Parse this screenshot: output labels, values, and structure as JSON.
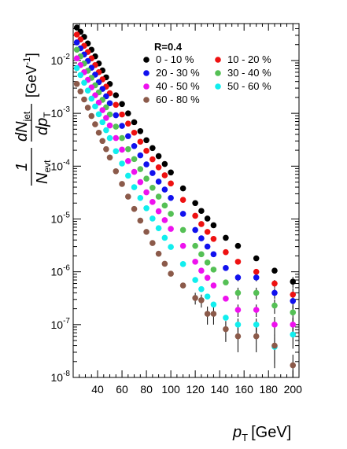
{
  "chart_data": {
    "type": "scatter",
    "xlabel": "p",
    "xlabel_sub": "T",
    "xlabel_unit": "[GeV]",
    "ylabel_parts": {
      "one": "1",
      "nevt": "N",
      "nevt_sub": "evt",
      "dn": "dN",
      "dn_sub": "jet",
      "dp": "dp",
      "dp_sub": "T",
      "unit_main": "[GeV",
      "unit_exp": "-1",
      "unit_close": "]"
    },
    "xlim": [
      20,
      205
    ],
    "ylim": [
      1e-08,
      0.05
    ],
    "log_y": true,
    "grid": false,
    "legend_title": "R=0.4",
    "legend_placement": "top-right",
    "x_ticks": [
      40,
      60,
      80,
      100,
      120,
      140,
      160,
      180,
      200
    ],
    "x_tick_labels": [
      "40",
      "60",
      "80",
      "100",
      "120",
      "140",
      "160",
      "180",
      "200"
    ],
    "y_ticks": [
      {
        "exp": -8,
        "label_base": "10",
        "label_exp": "-8"
      },
      {
        "exp": -7,
        "label_base": "10",
        "label_exp": "-7"
      },
      {
        "exp": -6,
        "label_base": "10",
        "label_exp": "-6"
      },
      {
        "exp": -5,
        "label_base": "10",
        "label_exp": "-5"
      },
      {
        "exp": -4,
        "label_base": "10",
        "label_exp": "-4"
      },
      {
        "exp": -3,
        "label_base": "10",
        "label_exp": "-3"
      },
      {
        "exp": -2,
        "label_base": "10",
        "label_exp": "-2"
      }
    ],
    "x": [
      23,
      26,
      29,
      32,
      35,
      38,
      41,
      44,
      47,
      50,
      55,
      60,
      65,
      70,
      75,
      80,
      85,
      90,
      95,
      100,
      110,
      120,
      125,
      130,
      135,
      145,
      155,
      170,
      185,
      200
    ],
    "series": [
      {
        "name": "0 - 10 %",
        "color": "#000000",
        "values": [
          0.042,
          0.035,
          0.028,
          0.021,
          0.016,
          0.012,
          0.0088,
          0.0065,
          0.0048,
          0.0036,
          0.0022,
          0.0015,
          0.001,
          0.00068,
          0.00046,
          0.00031,
          0.00022,
          0.000155,
          0.00011,
          7.6e-05,
          3.8e-05,
          2e-05,
          1.42e-05,
          1.02e-05,
          7.6e-06,
          4.4e-06,
          3.1e-06,
          1.8e-06,
          1.05e-06,
          6.5e-07
        ],
        "errors": [
          0,
          0,
          0,
          0,
          0,
          0,
          0,
          0,
          0,
          0,
          0,
          0,
          0,
          0,
          0,
          0,
          0,
          0,
          0,
          0,
          0,
          0,
          0,
          0,
          0,
          0,
          0,
          0,
          0,
          1.5e-07
        ]
      },
      {
        "name": "10 - 20 %",
        "color": "#ee1111",
        "values": [
          0.031,
          0.025,
          0.019,
          0.0145,
          0.011,
          0.0082,
          0.006,
          0.0044,
          0.0032,
          0.0024,
          0.00145,
          0.00095,
          0.00064,
          0.00043,
          0.00029,
          0.000195,
          0.000135,
          9.5e-05,
          6.7e-05,
          4.7e-05,
          2.3e-05,
          1.15e-05,
          8e-06,
          5.7e-06,
          4.2e-06,
          2.35e-06,
          1.55e-06,
          1e-06,
          6e-07,
          3.7e-07
        ],
        "errors": [
          0,
          0,
          0,
          0,
          0,
          0,
          0,
          0,
          0,
          0,
          0,
          0,
          0,
          0,
          0,
          0,
          0,
          0,
          0,
          0,
          0,
          0,
          0,
          0,
          0,
          0,
          0,
          0,
          1e-07,
          1.2e-07
        ]
      },
      {
        "name": "20 - 30 %",
        "color": "#1111ee",
        "values": [
          0.022,
          0.017,
          0.013,
          0.0098,
          0.0073,
          0.0054,
          0.0039,
          0.0029,
          0.0021,
          0.00155,
          0.00092,
          0.00058,
          0.00037,
          0.00024,
          0.00016,
          0.000108,
          7.4e-05,
          5.1e-05,
          3.6e-05,
          2.5e-05,
          1.25e-05,
          6.2e-06,
          4.3e-06,
          3e-06,
          2.15e-06,
          1.18e-06,
          7.8e-07,
          7.8e-07,
          4e-07,
          2.8e-07
        ],
        "errors": [
          0,
          0,
          0,
          0,
          0,
          0,
          0,
          0,
          0,
          0,
          0,
          0,
          0,
          0,
          0,
          0,
          0,
          0,
          0,
          0,
          0,
          0,
          0,
          0,
          0,
          0,
          1.2e-07,
          1.2e-07,
          9e-08,
          8e-08
        ]
      },
      {
        "name": "30 - 40 %",
        "color": "#55c055",
        "values": [
          0.016,
          0.012,
          0.0088,
          0.0064,
          0.0047,
          0.0034,
          0.0025,
          0.0018,
          0.0013,
          0.00095,
          0.00056,
          0.00034,
          0.00021,
          0.000136,
          8.8e-05,
          5.8e-05,
          3.9e-05,
          2.65e-05,
          1.8e-05,
          1.25e-05,
          6.2e-06,
          3.1e-06,
          2.15e-06,
          1.5e-06,
          1.1e-06,
          6.3e-07,
          4e-07,
          4e-07,
          2.3e-07,
          1.7e-07
        ],
        "errors": [
          0,
          0,
          0,
          0,
          0,
          0,
          0,
          0,
          0,
          0,
          0,
          0,
          0,
          0,
          0,
          0,
          0,
          0,
          0,
          0,
          0,
          0,
          0,
          0,
          0,
          0,
          1e-07,
          1e-07,
          7e-08,
          6e-08
        ]
      },
      {
        "name": "40 - 50 %",
        "color": "#ee11ee",
        "values": [
          0.011,
          0.0082,
          0.006,
          0.0043,
          0.0031,
          0.0022,
          0.0016,
          0.00115,
          0.00082,
          0.00059,
          0.00034,
          0.000205,
          0.000125,
          7.8e-05,
          5e-05,
          3.2e-05,
          2.1e-05,
          1.4e-05,
          9.5e-06,
          6.5e-06,
          3.1e-06,
          1.55e-06,
          1.05e-06,
          7.7e-07,
          5.5e-07,
          3.1e-07,
          1.9e-07,
          1.9e-07,
          1e-07,
          1e-07
        ],
        "errors": [
          0,
          0,
          0,
          0,
          0,
          0,
          0,
          0,
          0,
          0,
          0,
          0,
          0,
          0,
          0,
          0,
          0,
          0,
          0,
          0,
          0,
          0,
          0,
          0,
          0,
          0,
          5e-08,
          5e-08,
          4e-08,
          3.5e-08
        ]
      },
      {
        "name": "50 - 60 %",
        "color": "#11eeee",
        "values": [
          0.0072,
          0.0053,
          0.0038,
          0.0027,
          0.0019,
          0.00135,
          0.00096,
          0.00068,
          0.00048,
          0.00034,
          0.000192,
          0.000112,
          6.6e-05,
          4e-05,
          2.5e-05,
          1.6e-05,
          1.02e-05,
          6.7e-06,
          4.4e-06,
          2.95e-06,
          1.4e-06,
          7e-07,
          4.7e-07,
          3.4e-07,
          2.4e-07,
          1.35e-07,
          1e-07,
          1e-07,
          3.8e-08,
          6.5e-08
        ],
        "errors": [
          0,
          0,
          0,
          0,
          0,
          0,
          0,
          0,
          0,
          0,
          0,
          0,
          0,
          0,
          0,
          0,
          0,
          0,
          0,
          0,
          0,
          0,
          0,
          0,
          0,
          0,
          3e-08,
          3e-08,
          2e-08,
          3e-08
        ]
      },
      {
        "name": "60 - 80 %",
        "color": "#8b5a4a",
        "values": [
          0.0036,
          0.0026,
          0.00183,
          0.00128,
          0.00089,
          0.00062,
          0.00043,
          0.0003,
          0.00021,
          0.000146,
          8e-05,
          4.6e-05,
          2.65e-05,
          1.55e-05,
          9.3e-06,
          5.7e-06,
          3.5e-06,
          2.2e-06,
          1.42e-06,
          9.2e-07,
          5.5e-07,
          3.2e-07,
          2.9e-07,
          1.6e-07,
          1.6e-07,
          8.2e-08,
          6e-08,
          6e-08,
          4e-08,
          1.7e-08
        ],
        "errors": [
          0,
          0,
          0,
          0,
          0,
          0,
          0,
          0,
          0,
          0,
          0,
          0,
          0,
          0,
          0,
          0,
          0,
          0,
          0,
          0,
          0,
          8e-08,
          8e-08,
          6e-08,
          6e-08,
          3.5e-08,
          3e-08,
          3e-08,
          2.5e-08,
          1e-08
        ]
      }
    ]
  }
}
